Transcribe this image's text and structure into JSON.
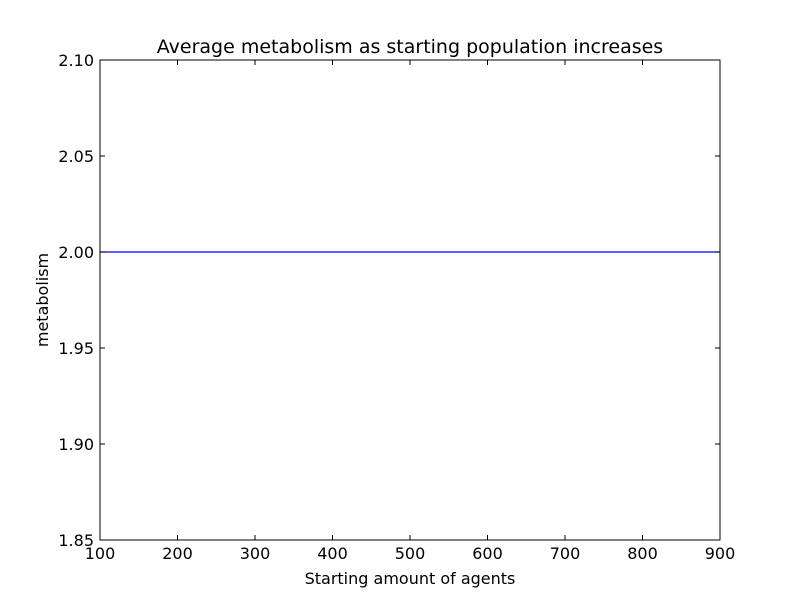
{
  "chart_data": {
    "type": "line",
    "title": "Average metabolism as starting population increases",
    "xlabel": "Starting amount of agents",
    "ylabel": "metabolism",
    "xlim": [
      100,
      900
    ],
    "ylim": [
      1.85,
      2.1
    ],
    "x_ticks": [
      "100",
      "200",
      "300",
      "400",
      "500",
      "600",
      "700",
      "800",
      "900"
    ],
    "y_ticks": [
      "1.85",
      "1.90",
      "1.95",
      "2.00",
      "2.05",
      "2.10"
    ],
    "grid": false,
    "series": [
      {
        "color": "#0000ff",
        "x": [
          100,
          200,
          300,
          400,
          500,
          600,
          700,
          800,
          900
        ],
        "y": [
          2.0,
          2.0,
          2.0,
          2.0,
          2.0,
          2.0,
          2.0,
          2.0,
          2.0
        ]
      }
    ]
  }
}
